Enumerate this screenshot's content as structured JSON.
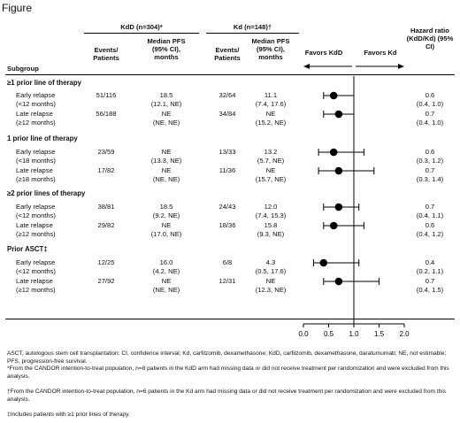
{
  "figure_label": "Figure",
  "headers": {
    "kdd_group": "KdD (n=304)*",
    "kd_group": "Kd (n=148)†",
    "subgroup": "Subgroup",
    "events": "Events/ Patients",
    "median_pfs": "Median PFS (95% CI), months",
    "favors_kdd": "Favors KdD",
    "favors_kd": "Favors Kd",
    "hazard_ratio": "Hazard ratio (KdD/Kd) (95% CI)"
  },
  "sections": [
    {
      "title": "≥1 prior line of therapy",
      "rows": [
        {
          "label1": "Early relapse",
          "label2": "(<12 months)",
          "kdd_events": "51/116",
          "kdd_pfs1": "18.5",
          "kdd_pfs2": "(12.1, NE)",
          "kd_events": "32/64",
          "kd_pfs1": "11.1",
          "kd_pfs2": "(7.4, 17.6)",
          "hr1": "0.6",
          "hr2": "(0.4, 1.0)"
        },
        {
          "label1": "Late relapse",
          "label2": "(≥12 months)",
          "kdd_events": "56/188",
          "kdd_pfs1": "NE",
          "kdd_pfs2": "(NE, NE)",
          "kd_events": "34/84",
          "kd_pfs1": "NE",
          "kd_pfs2": "(15.2, NE)",
          "hr1": "0.7",
          "hr2": "(0.4, 1.0)"
        }
      ]
    },
    {
      "title": "1 prior line of therapy",
      "rows": [
        {
          "label1": "Early relapse",
          "label2": "(<18 months)",
          "kdd_events": "23/59",
          "kdd_pfs1": "NE",
          "kdd_pfs2": "(13.3, NE)",
          "kd_events": "13/33",
          "kd_pfs1": "13.2",
          "kd_pfs2": "(5.7, NE)",
          "hr1": "0.6",
          "hr2": "(0.3, 1.2)"
        },
        {
          "label1": "Late relapse",
          "label2": "(≥18 months)",
          "kdd_events": "17/82",
          "kdd_pfs1": "NE",
          "kdd_pfs2": "(NE, NE)",
          "kd_events": "11/36",
          "kd_pfs1": "NE",
          "kd_pfs2": "(15.7, NE)",
          "hr1": "0.7",
          "hr2": "(0.3, 1.4)"
        }
      ]
    },
    {
      "title": "≥2 prior lines of therapy",
      "rows": [
        {
          "label1": "Early relapse",
          "label2": "(<12 months)",
          "kdd_events": "38/81",
          "kdd_pfs1": "18.5",
          "kdd_pfs2": "(9.2, NE)",
          "kd_events": "24/43",
          "kd_pfs1": "12.0",
          "kd_pfs2": "(7.4, 15.3)",
          "hr1": "0.7",
          "hr2": "(0.4, 1.1)"
        },
        {
          "label1": "Late relapse",
          "label2": "(≥12 months)",
          "kdd_events": "29/82",
          "kdd_pfs1": "NE",
          "kdd_pfs2": "(17.0, NE)",
          "kd_events": "18/36",
          "kd_pfs1": "15.8",
          "kd_pfs2": "(9.3, NE)",
          "hr1": "0.6",
          "hr2": "(0.4, 1.2)"
        }
      ]
    },
    {
      "title": "Prior ASCT‡",
      "rows": [
        {
          "label1": "Early relapse",
          "label2": "(<12 months)",
          "kdd_events": "12/25",
          "kdd_pfs1": "16.0",
          "kdd_pfs2": "(4.2, NE)",
          "kd_events": "6/8",
          "kd_pfs1": "4.3",
          "kd_pfs2": "(0.5, 17.6)",
          "hr1": "0.4",
          "hr2": "(0.2, 1.1)"
        },
        {
          "label1": "Late relapse",
          "label2": "(≥12 months)",
          "kdd_events": "27/92",
          "kdd_pfs1": "NE",
          "kdd_pfs2": "(NE, NE)",
          "kd_events": "12/31",
          "kd_pfs1": "NE",
          "kd_pfs2": "(12.3, NE)",
          "hr1": "0.7",
          "hr2": "(0.4, 1.5)"
        }
      ]
    }
  ],
  "footnotes": [
    "ASCT, autologous stem cell transplantation; CI, confidence interval; Kd, carfilzomib, dexamethasone; KdD, carfilzomib, dexamethasone, daratumumab; NE, not estimable; PFS, progression-free survival.",
    "*From the CANDOR intention-to-treat population, n=8 patients in the KdD arm had missing data or did not receive treatment per randomization and were excluded from this analysis.",
    "†From the CANDOR intention-to-treat population, n=6 patients in the Kd arm had missing data or did not receive treatment per randomization and were excluded from this analysis.",
    "‡Includes patients with ≥1 prior lines of therapy."
  ],
  "chart_data": {
    "type": "forest",
    "xlim": [
      0.0,
      2.0
    ],
    "xticks": [
      "0.0",
      "0.5",
      "1.0",
      "1.5",
      "2.0"
    ],
    "reference_line": 1.0,
    "marker_color": "#000000",
    "points": [
      {
        "hr": 0.6,
        "lo": 0.4,
        "hi": 1.0
      },
      {
        "hr": 0.7,
        "lo": 0.4,
        "hi": 1.0
      },
      {
        "hr": 0.6,
        "lo": 0.3,
        "hi": 1.2
      },
      {
        "hr": 0.7,
        "lo": 0.3,
        "hi": 1.4
      },
      {
        "hr": 0.7,
        "lo": 0.4,
        "hi": 1.1
      },
      {
        "hr": 0.6,
        "lo": 0.4,
        "hi": 1.2
      },
      {
        "hr": 0.4,
        "lo": 0.2,
        "hi": 1.1
      },
      {
        "hr": 0.7,
        "lo": 0.4,
        "hi": 1.5
      }
    ]
  }
}
